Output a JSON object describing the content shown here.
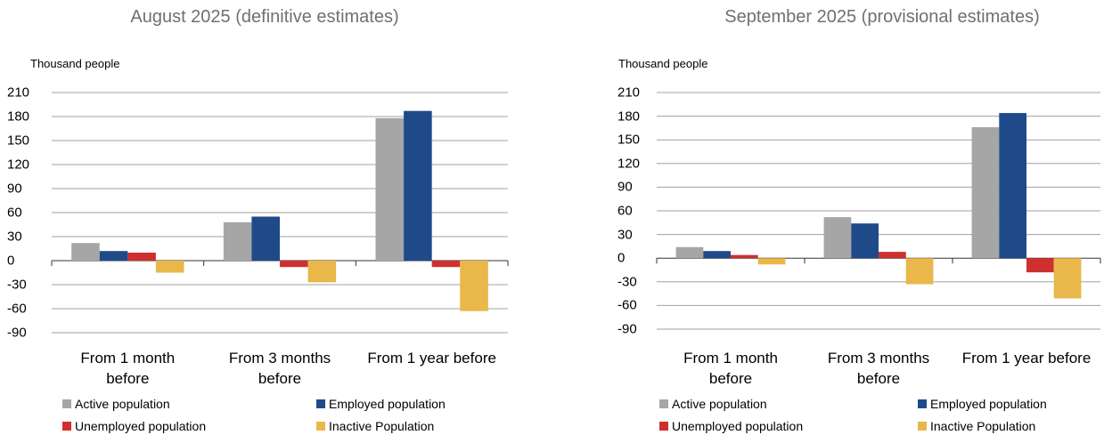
{
  "chart_data": [
    {
      "type": "bar",
      "title": "August 2025 (definitive estimates)",
      "ylabel": "Thousand people",
      "categories": [
        "From 1 month before",
        "From 3 months before",
        "From 1 year before"
      ],
      "series": [
        {
          "name": "Active population",
          "color": "#a6a6a6",
          "values": [
            22,
            48,
            178
          ]
        },
        {
          "name": "Employed population",
          "color": "#1f4a8a",
          "values": [
            12,
            55,
            187
          ]
        },
        {
          "name": "Unemployed population",
          "color": "#d02f2f",
          "values": [
            10,
            -8,
            -8
          ]
        },
        {
          "name": "Inactive Population",
          "color": "#e9b74a",
          "values": [
            -15,
            -27,
            -63
          ]
        }
      ],
      "ylim": [
        -90,
        210
      ],
      "yticks": [
        -90,
        -60,
        -30,
        0,
        30,
        60,
        90,
        120,
        150,
        180,
        210
      ],
      "grid": true
    },
    {
      "type": "bar",
      "title": "September 2025 (provisional estimates)",
      "ylabel": "Thousand people",
      "categories": [
        "From 1 month before",
        "From 3 months before",
        "From 1 year before"
      ],
      "series": [
        {
          "name": "Active population",
          "color": "#a6a6a6",
          "values": [
            14,
            52,
            166
          ]
        },
        {
          "name": "Employed population",
          "color": "#1f4a8a",
          "values": [
            9,
            44,
            184
          ]
        },
        {
          "name": "Unemployed population",
          "color": "#d02f2f",
          "values": [
            4,
            8,
            -18
          ]
        },
        {
          "name": "Inactive Population",
          "color": "#e9b74a",
          "values": [
            -8,
            -33,
            -51
          ]
        }
      ],
      "ylim": [
        -90,
        210
      ],
      "yticks": [
        -90,
        -60,
        -30,
        0,
        30,
        60,
        90,
        120,
        150,
        180,
        210
      ],
      "grid": true
    }
  ]
}
